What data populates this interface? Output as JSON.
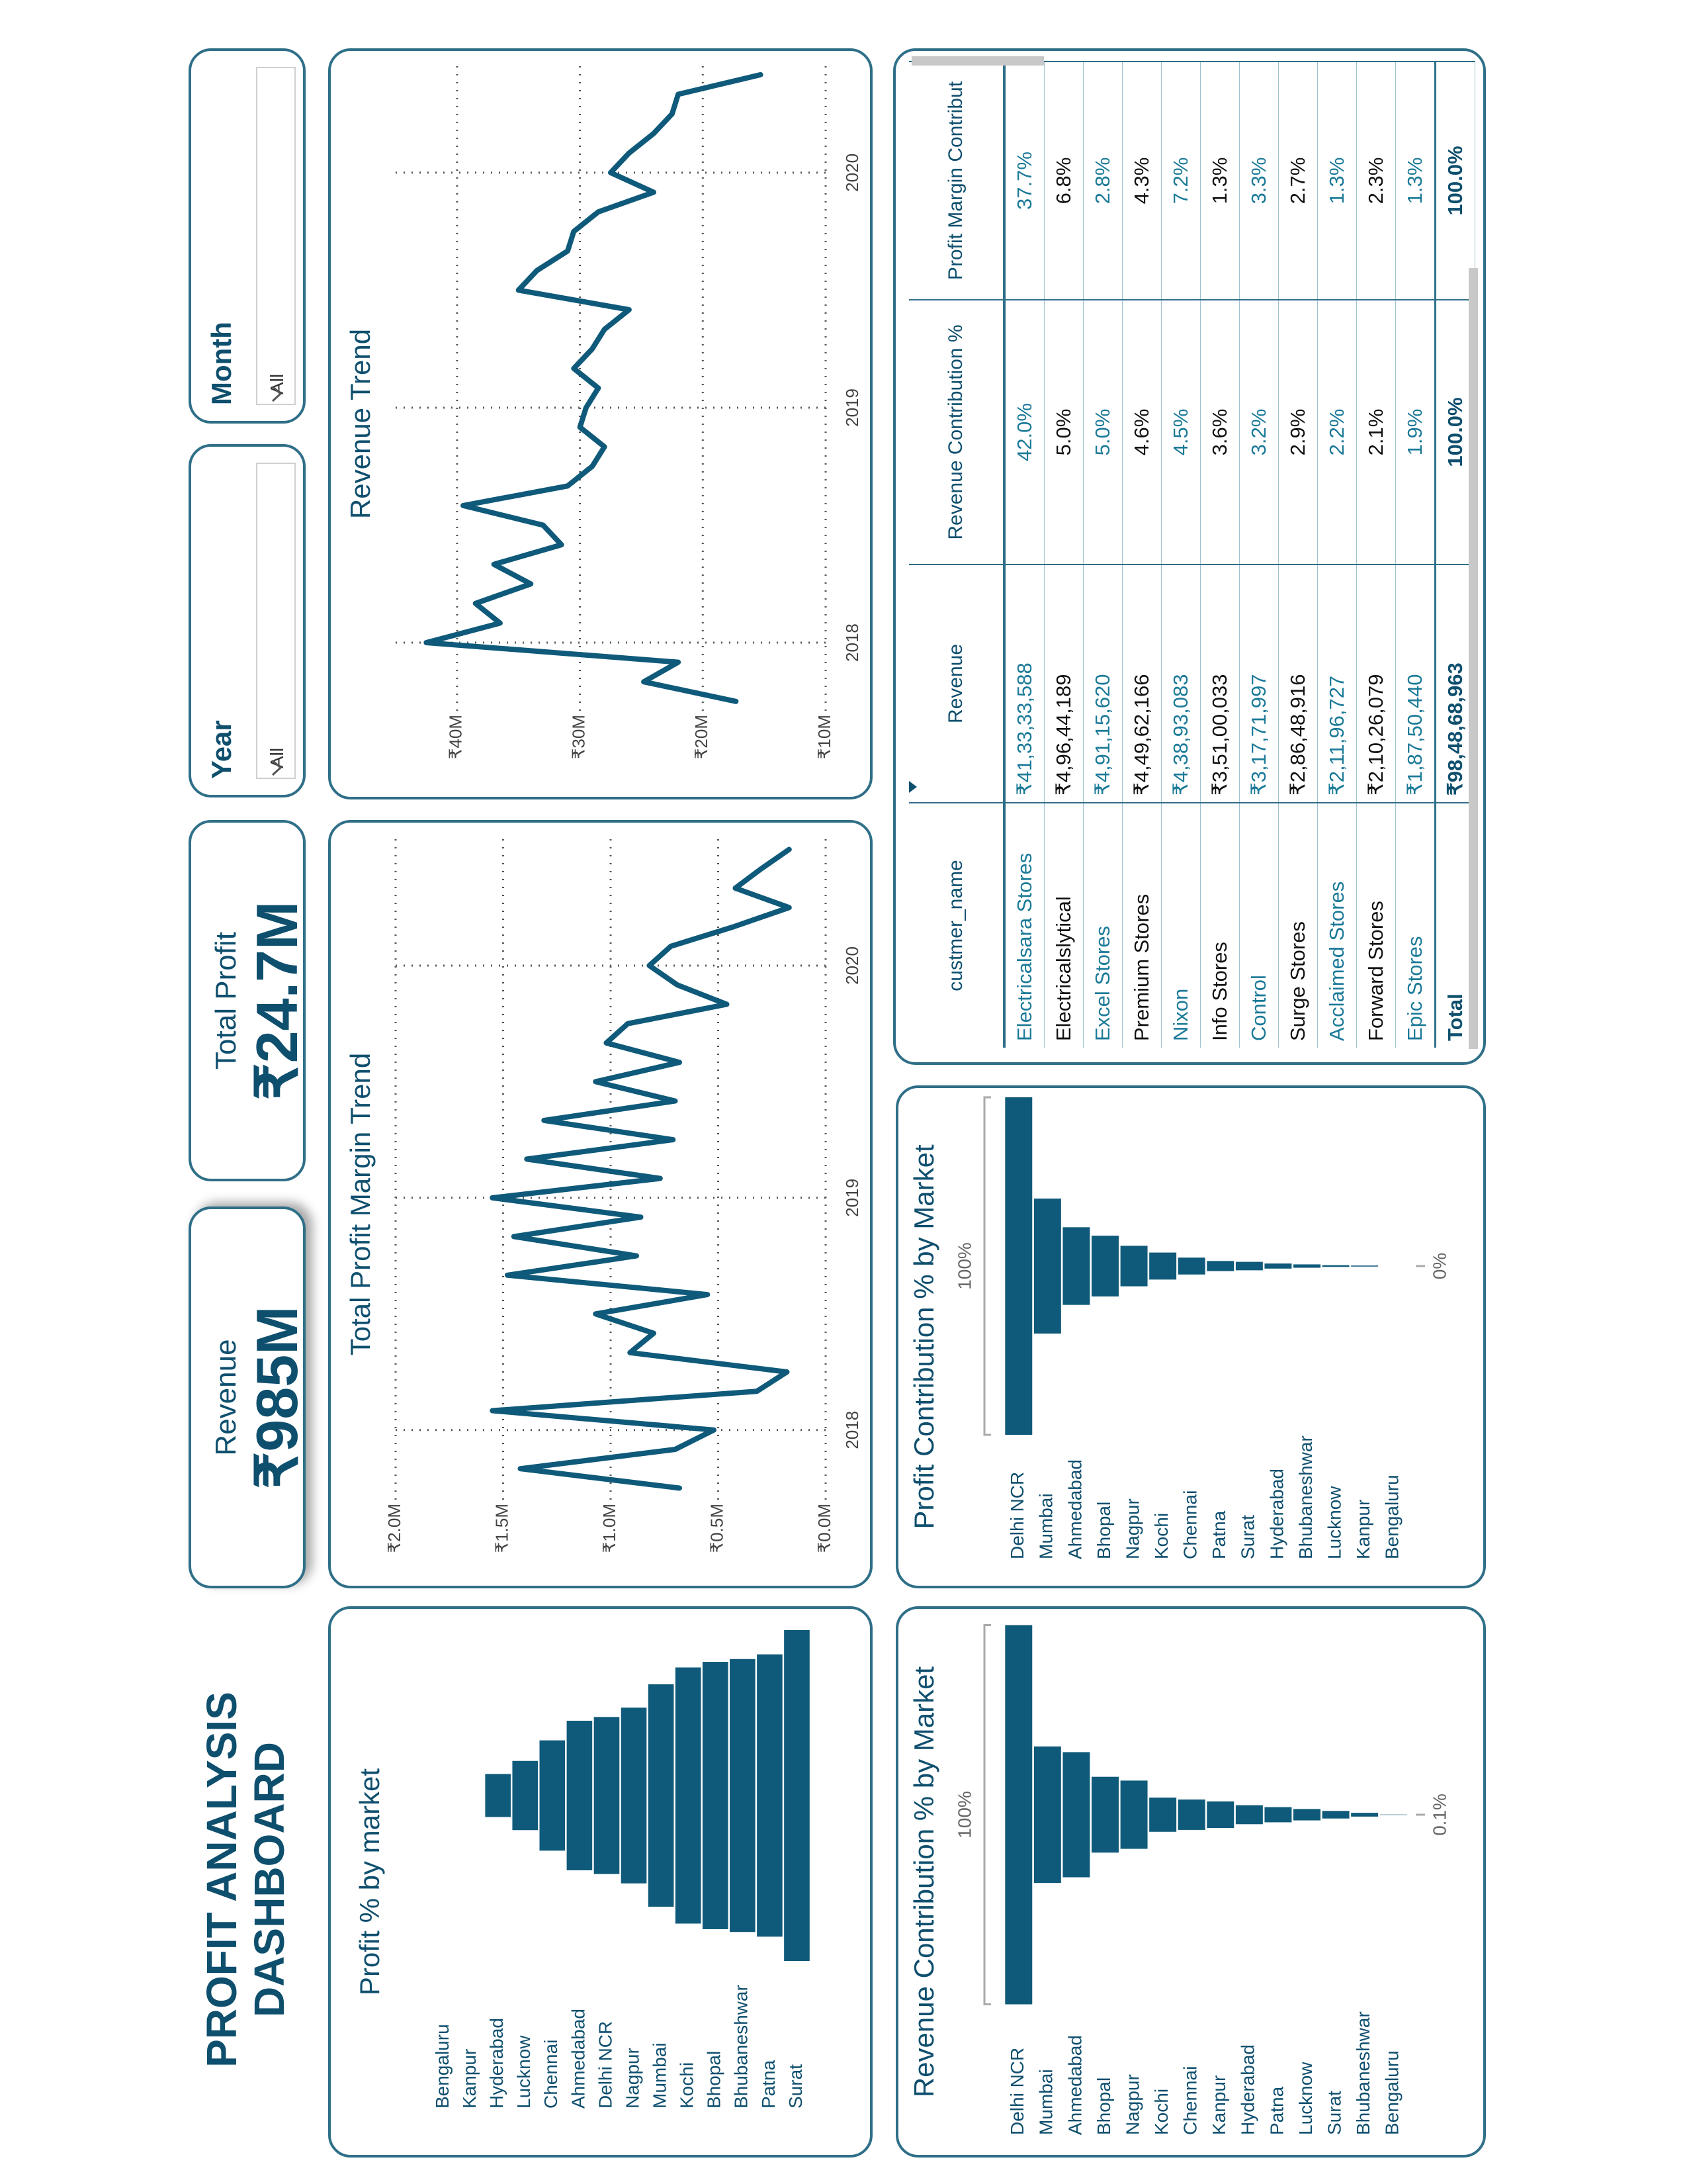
{
  "title": "PROFIT ANALYSIS DASHBOARD",
  "cards": [
    {
      "label": "Revenue",
      "value": "₹985M"
    },
    {
      "label": "Total Profit",
      "value": "₹24.7M"
    }
  ],
  "slicers": [
    {
      "label": "Year",
      "value": "All"
    },
    {
      "label": "Month",
      "value": "All"
    }
  ],
  "chart_data": [
    {
      "type": "funnel",
      "title": "Profit % by market",
      "color": "#0f5a7a",
      "categories": [
        "Bengaluru",
        "Kanpur",
        "Hyderabad",
        "Lucknow",
        "Chennai",
        "Ahmedabad",
        "Delhi NCR",
        "Nagpur",
        "Mumbai",
        "Kochi",
        "Bhopal",
        "Bhubaneshwar",
        "Patna",
        "Surat"
      ],
      "values": [
        0,
        0,
        2.3,
        3.7,
        5.9,
        8.0,
        8.4,
        9.4,
        11.9,
        13.7,
        14.3,
        14.6,
        15.1,
        17.7
      ]
    },
    {
      "type": "line",
      "title": "Total Profit Margin Trend",
      "color": "#0f5a7a",
      "grid": true,
      "x": [
        2017.75,
        2017.8333,
        2017.9167,
        2018,
        2018.0833,
        2018.1667,
        2018.25,
        2018.3333,
        2018.4167,
        2018.5,
        2018.5833,
        2018.6667,
        2018.75,
        2018.8333,
        2018.9167,
        2019,
        2019.0833,
        2019.1667,
        2019.25,
        2019.3333,
        2019.4167,
        2019.5,
        2019.5833,
        2019.6667,
        2019.75,
        2019.8333,
        2019.9167,
        2020,
        2020.0833,
        2020.1667,
        2020.25,
        2020.3333,
        2020.4167,
        2020.5
      ],
      "values": [
        680000,
        1420000,
        700000,
        520000,
        1550000,
        320000,
        180000,
        910000,
        800000,
        1070000,
        550000,
        1480000,
        880000,
        1450000,
        860000,
        1550000,
        770000,
        1390000,
        710000,
        1310000,
        700000,
        1070000,
        680000,
        1020000,
        920000,
        460000,
        690000,
        820000,
        720000,
        430000,
        170000,
        420000,
        300000,
        170000
      ],
      "xlim": [
        2017.7,
        2020.55
      ],
      "xticks": [
        2018,
        2019,
        2020
      ],
      "ylim": [
        0,
        2000000
      ],
      "yticks": [
        {
          "value": 0,
          "label": "₹0.0M"
        },
        {
          "value": 500000,
          "label": "₹0.5M"
        },
        {
          "value": 1000000,
          "label": "₹1.0M"
        },
        {
          "value": 1500000,
          "label": "₹1.5M"
        },
        {
          "value": 2000000,
          "label": "₹2.0M"
        }
      ]
    },
    {
      "type": "line",
      "title": "Revenue Trend",
      "color": "#0f5a7a",
      "grid": true,
      "x": [
        2017.75,
        2017.8333,
        2017.9167,
        2018,
        2018.0833,
        2018.1667,
        2018.25,
        2018.3333,
        2018.4167,
        2018.5,
        2018.5833,
        2018.6667,
        2018.75,
        2018.8333,
        2018.9167,
        2019,
        2019.0833,
        2019.1667,
        2019.25,
        2019.3333,
        2019.4167,
        2019.5,
        2019.5833,
        2019.6667,
        2019.75,
        2019.8333,
        2019.9167,
        2020,
        2020.0833,
        2020.1667,
        2020.25,
        2020.3333,
        2020.4167
      ],
      "values": [
        17300000,
        24800000,
        22000000,
        42500000,
        36500000,
        38500000,
        34000000,
        37000000,
        31500000,
        33000000,
        39500000,
        31000000,
        29000000,
        28000000,
        30000000,
        29500000,
        28500000,
        30500000,
        29000000,
        28000000,
        26000000,
        35000000,
        33500000,
        31000000,
        30500000,
        28500000,
        24000000,
        27500000,
        26000000,
        24000000,
        22500000,
        22000000,
        15300000
      ],
      "xlim": [
        2017.71,
        2020.47
      ],
      "xticks": [
        2018,
        2019,
        2020
      ],
      "ylim": [
        10000000,
        45000000
      ],
      "yticks": [
        {
          "value": 10000000,
          "label": "₹10M"
        },
        {
          "value": 20000000,
          "label": "₹20M"
        },
        {
          "value": 30000000,
          "label": "₹30M"
        },
        {
          "value": 40000000,
          "label": "₹40M"
        }
      ]
    },
    {
      "type": "funnel",
      "title": "Revenue Contribution % by Market",
      "color": "#0f5a7a",
      "categories": [
        "Delhi NCR",
        "Mumbai",
        "Ahmedabad",
        "Bhopal",
        "Nagpur",
        "Kochi",
        "Chennai",
        "Kanpur",
        "Hyderabad",
        "Patna",
        "Lucknow",
        "Surat",
        "Bhubaneshwar",
        "Bengaluru"
      ],
      "values": [
        100,
        36,
        33,
        20,
        18,
        9,
        8,
        7,
        5,
        4,
        3,
        2,
        1,
        0.1
      ],
      "value_labels": [
        "100%",
        null,
        null,
        null,
        null,
        null,
        null,
        null,
        null,
        null,
        null,
        null,
        null,
        "0.1%"
      ]
    },
    {
      "type": "funnel",
      "title": "Profit Contribution % by Market",
      "color": "#0f5a7a",
      "categories": [
        "Delhi NCR",
        "Mumbai",
        "Ahmedabad",
        "Bhopal",
        "Nagpur",
        "Kochi",
        "Chennai",
        "Patna",
        "Surat",
        "Hyderabad",
        "Bhubaneshwar",
        "Lucknow",
        "Kanpur",
        "Bengaluru"
      ],
      "values": [
        100,
        40,
        23,
        18,
        12,
        8,
        5,
        3,
        2.5,
        1.5,
        1,
        0.5,
        0.3,
        0
      ],
      "value_labels": [
        "100%",
        null,
        null,
        null,
        null,
        null,
        null,
        null,
        null,
        null,
        null,
        null,
        null,
        "0%"
      ]
    }
  ],
  "table": {
    "columns": [
      "custmer_name",
      "Revenue",
      "Revenue Contribution %",
      "Profit Margin Contribut"
    ],
    "rows": [
      [
        "Electricalsara Stores",
        "₹41,33,33,588",
        "42.0%",
        "37.7%"
      ],
      [
        "Electricalslytical",
        "₹4,96,44,189",
        "5.0%",
        "6.8%"
      ],
      [
        "Excel Stores",
        "₹4,91,15,620",
        "5.0%",
        "2.8%"
      ],
      [
        "Premium Stores",
        "₹4,49,62,166",
        "4.6%",
        "4.3%"
      ],
      [
        "Nixon",
        "₹4,38,93,083",
        "4.5%",
        "7.2%"
      ],
      [
        "Info Stores",
        "₹3,51,00,033",
        "3.6%",
        "1.3%"
      ],
      [
        "Control",
        "₹3,17,71,997",
        "3.2%",
        "3.3%"
      ],
      [
        "Surge Stores",
        "₹2,86,48,916",
        "2.9%",
        "2.7%"
      ],
      [
        "Acclaimed Stores",
        "₹2,11,96,727",
        "2.2%",
        "1.3%"
      ],
      [
        "Forward Stores",
        "₹2,10,26,079",
        "2.1%",
        "2.3%"
      ],
      [
        "Epic Stores",
        "₹1,87,50,440",
        "1.9%",
        "1.3%"
      ]
    ],
    "total": [
      "Total",
      "₹98,48,68,963",
      "100.0%",
      "100.0%"
    ]
  }
}
